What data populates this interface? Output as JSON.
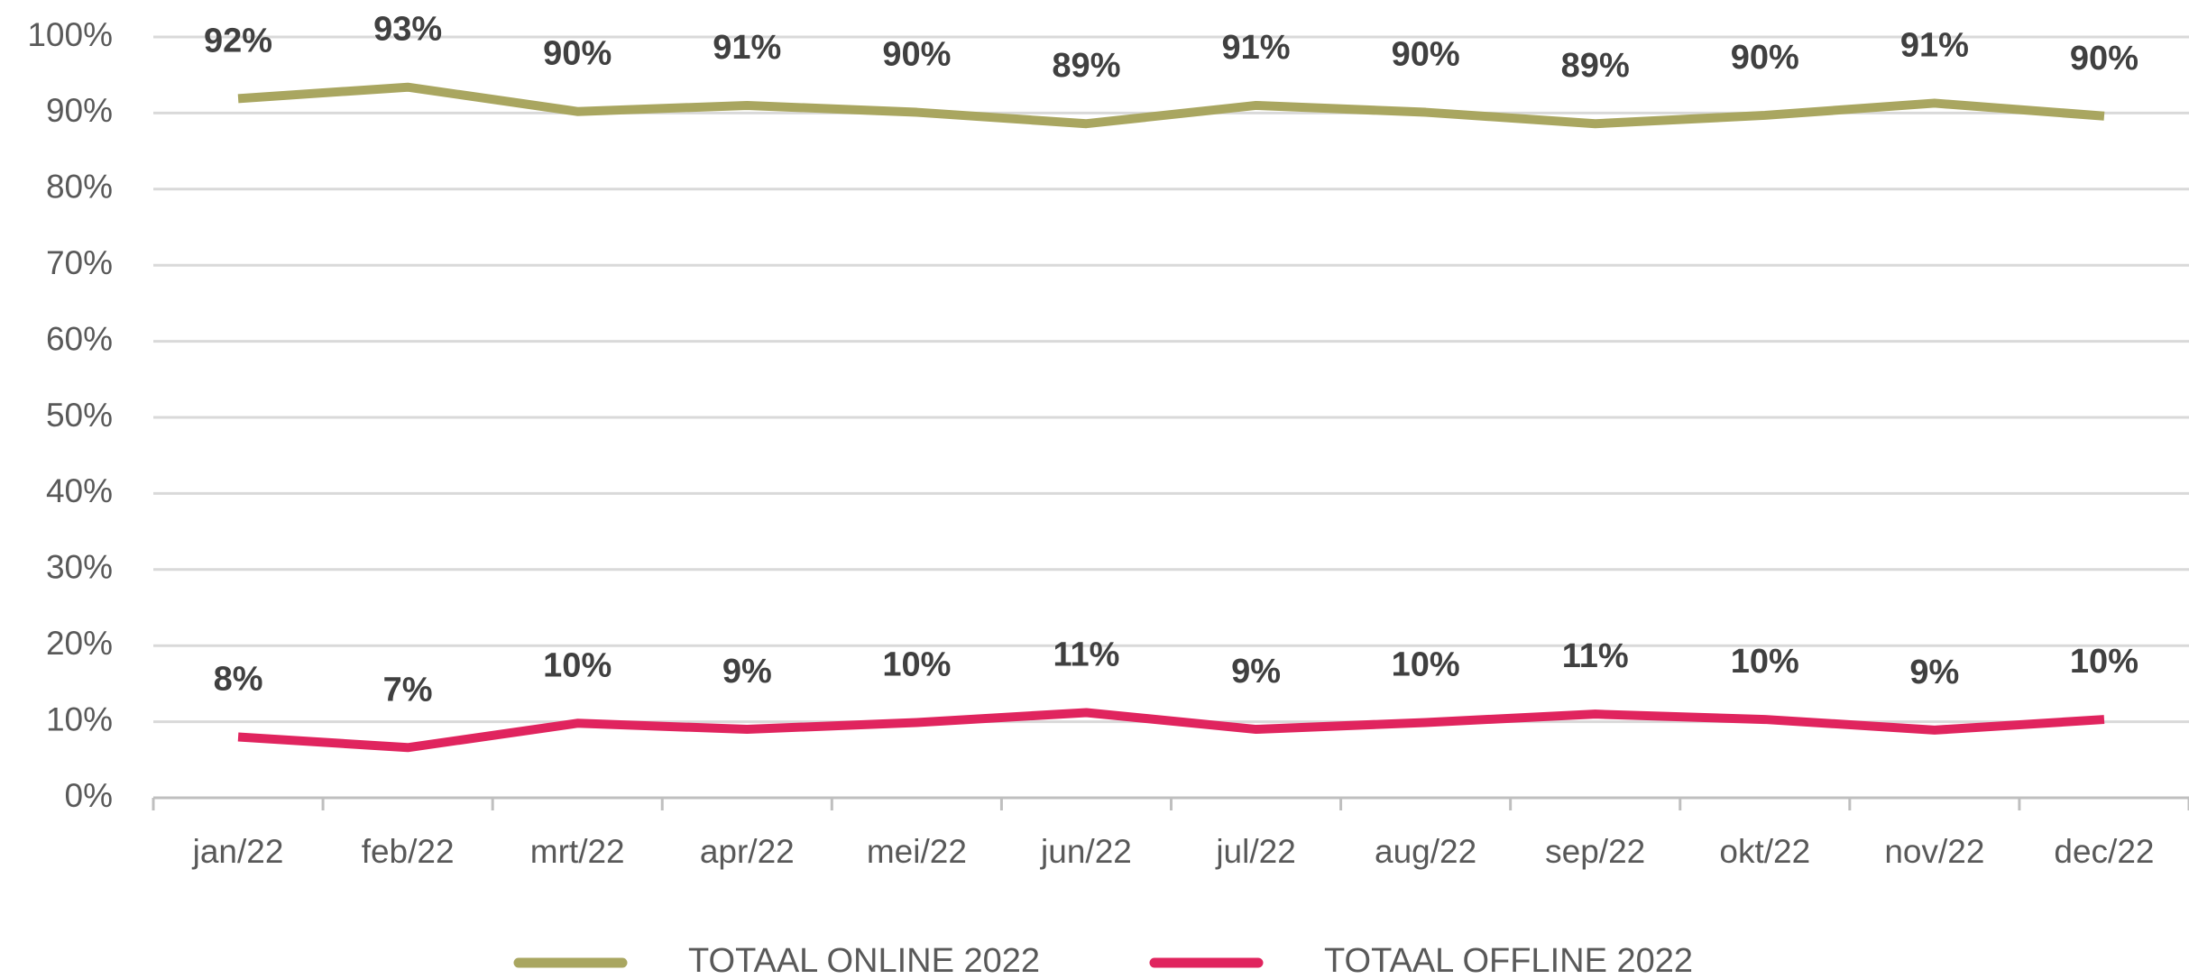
{
  "chart_data": {
    "type": "line",
    "categories": [
      "jan/22",
      "feb/22",
      "mrt/22",
      "apr/22",
      "mei/22",
      "jun/22",
      "jul/22",
      "aug/22",
      "sep/22",
      "okt/22",
      "nov/22",
      "dec/22"
    ],
    "series": [
      {
        "name": "TOTAAL ONLINE 2022",
        "color": "#a9a660",
        "values": [
          91.9,
          93.4,
          90.2,
          91.0,
          90.1,
          88.6,
          91.0,
          90.1,
          88.6,
          89.7,
          91.3,
          89.6
        ],
        "value_labels": [
          "92%",
          "93%",
          "90%",
          "91%",
          "90%",
          "89%",
          "91%",
          "90%",
          "89%",
          "90%",
          "91%",
          "90%"
        ]
      },
      {
        "name": "TOTAAL OFFLINE 2022",
        "color": "#e0245e",
        "values": [
          8.0,
          6.6,
          9.8,
          9.0,
          9.9,
          11.2,
          9.0,
          9.9,
          11.0,
          10.3,
          8.9,
          10.3
        ],
        "value_labels": [
          "8%",
          "7%",
          "10%",
          "9%",
          "10%",
          "11%",
          "9%",
          "10%",
          "11%",
          "10%",
          "9%",
          "10%"
        ]
      }
    ],
    "ylim": [
      0,
      100
    ],
    "yticks": [
      {
        "value": 0,
        "label": "0%"
      },
      {
        "value": 10,
        "label": "10%"
      },
      {
        "value": 20,
        "label": "20%"
      },
      {
        "value": 30,
        "label": "30%"
      },
      {
        "value": 40,
        "label": "40%"
      },
      {
        "value": 50,
        "label": "50%"
      },
      {
        "value": 60,
        "label": "60%"
      },
      {
        "value": 70,
        "label": "70%"
      },
      {
        "value": 80,
        "label": "80%"
      },
      {
        "value": 90,
        "label": "90%"
      },
      {
        "value": 100,
        "label": "100%"
      }
    ],
    "grid": true,
    "legend": "bottom"
  }
}
